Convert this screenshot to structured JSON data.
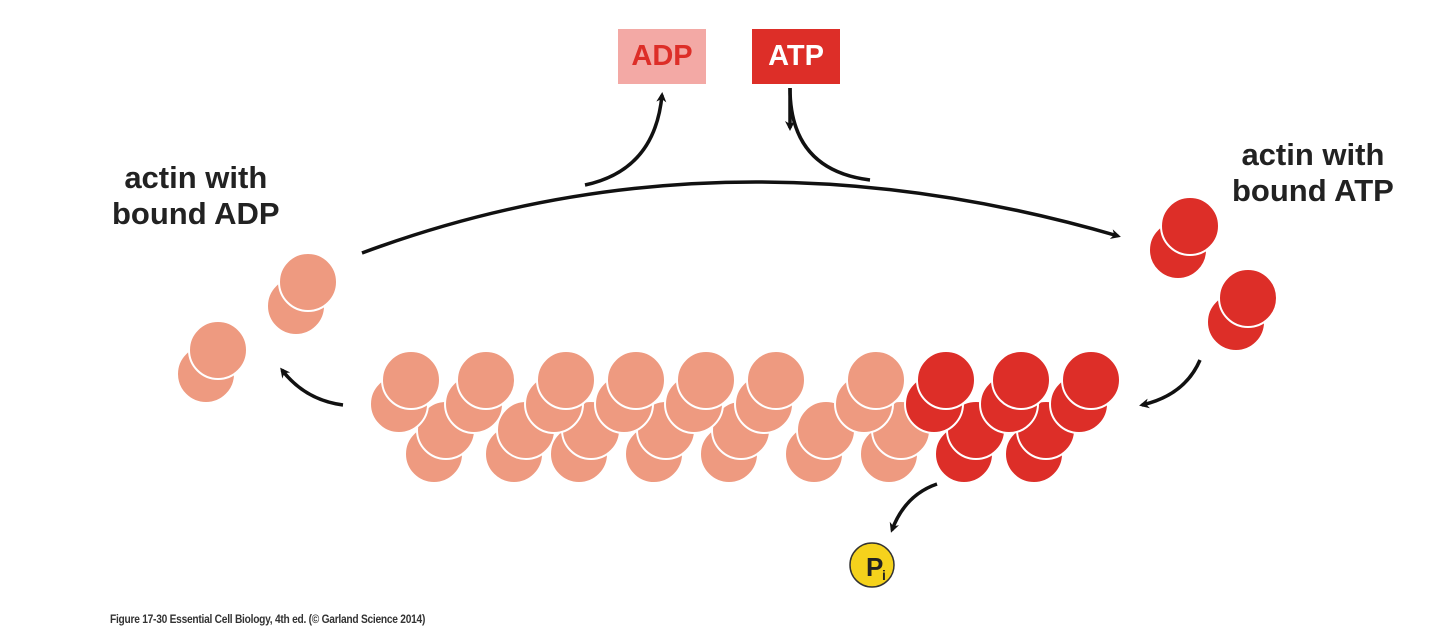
{
  "labels": {
    "adp_state": "actin with\nbound ADP",
    "atp_state": "actin with\nbound ATP",
    "adp_box": "ADP",
    "atp_box": "ATP",
    "pi": "P",
    "pi_sub": "i"
  },
  "caption": "Figure 17-30  Essential Cell Biology, 4th ed. (© Garland Science 2014)",
  "colors": {
    "adp_actin": "#ee9a80",
    "atp_actin": "#dd2e28",
    "adp_box_bg": "#f3a9a5",
    "atp_box_bg": "#dd2e28",
    "pi": "#f5d21c",
    "arrow": "#111111"
  }
}
